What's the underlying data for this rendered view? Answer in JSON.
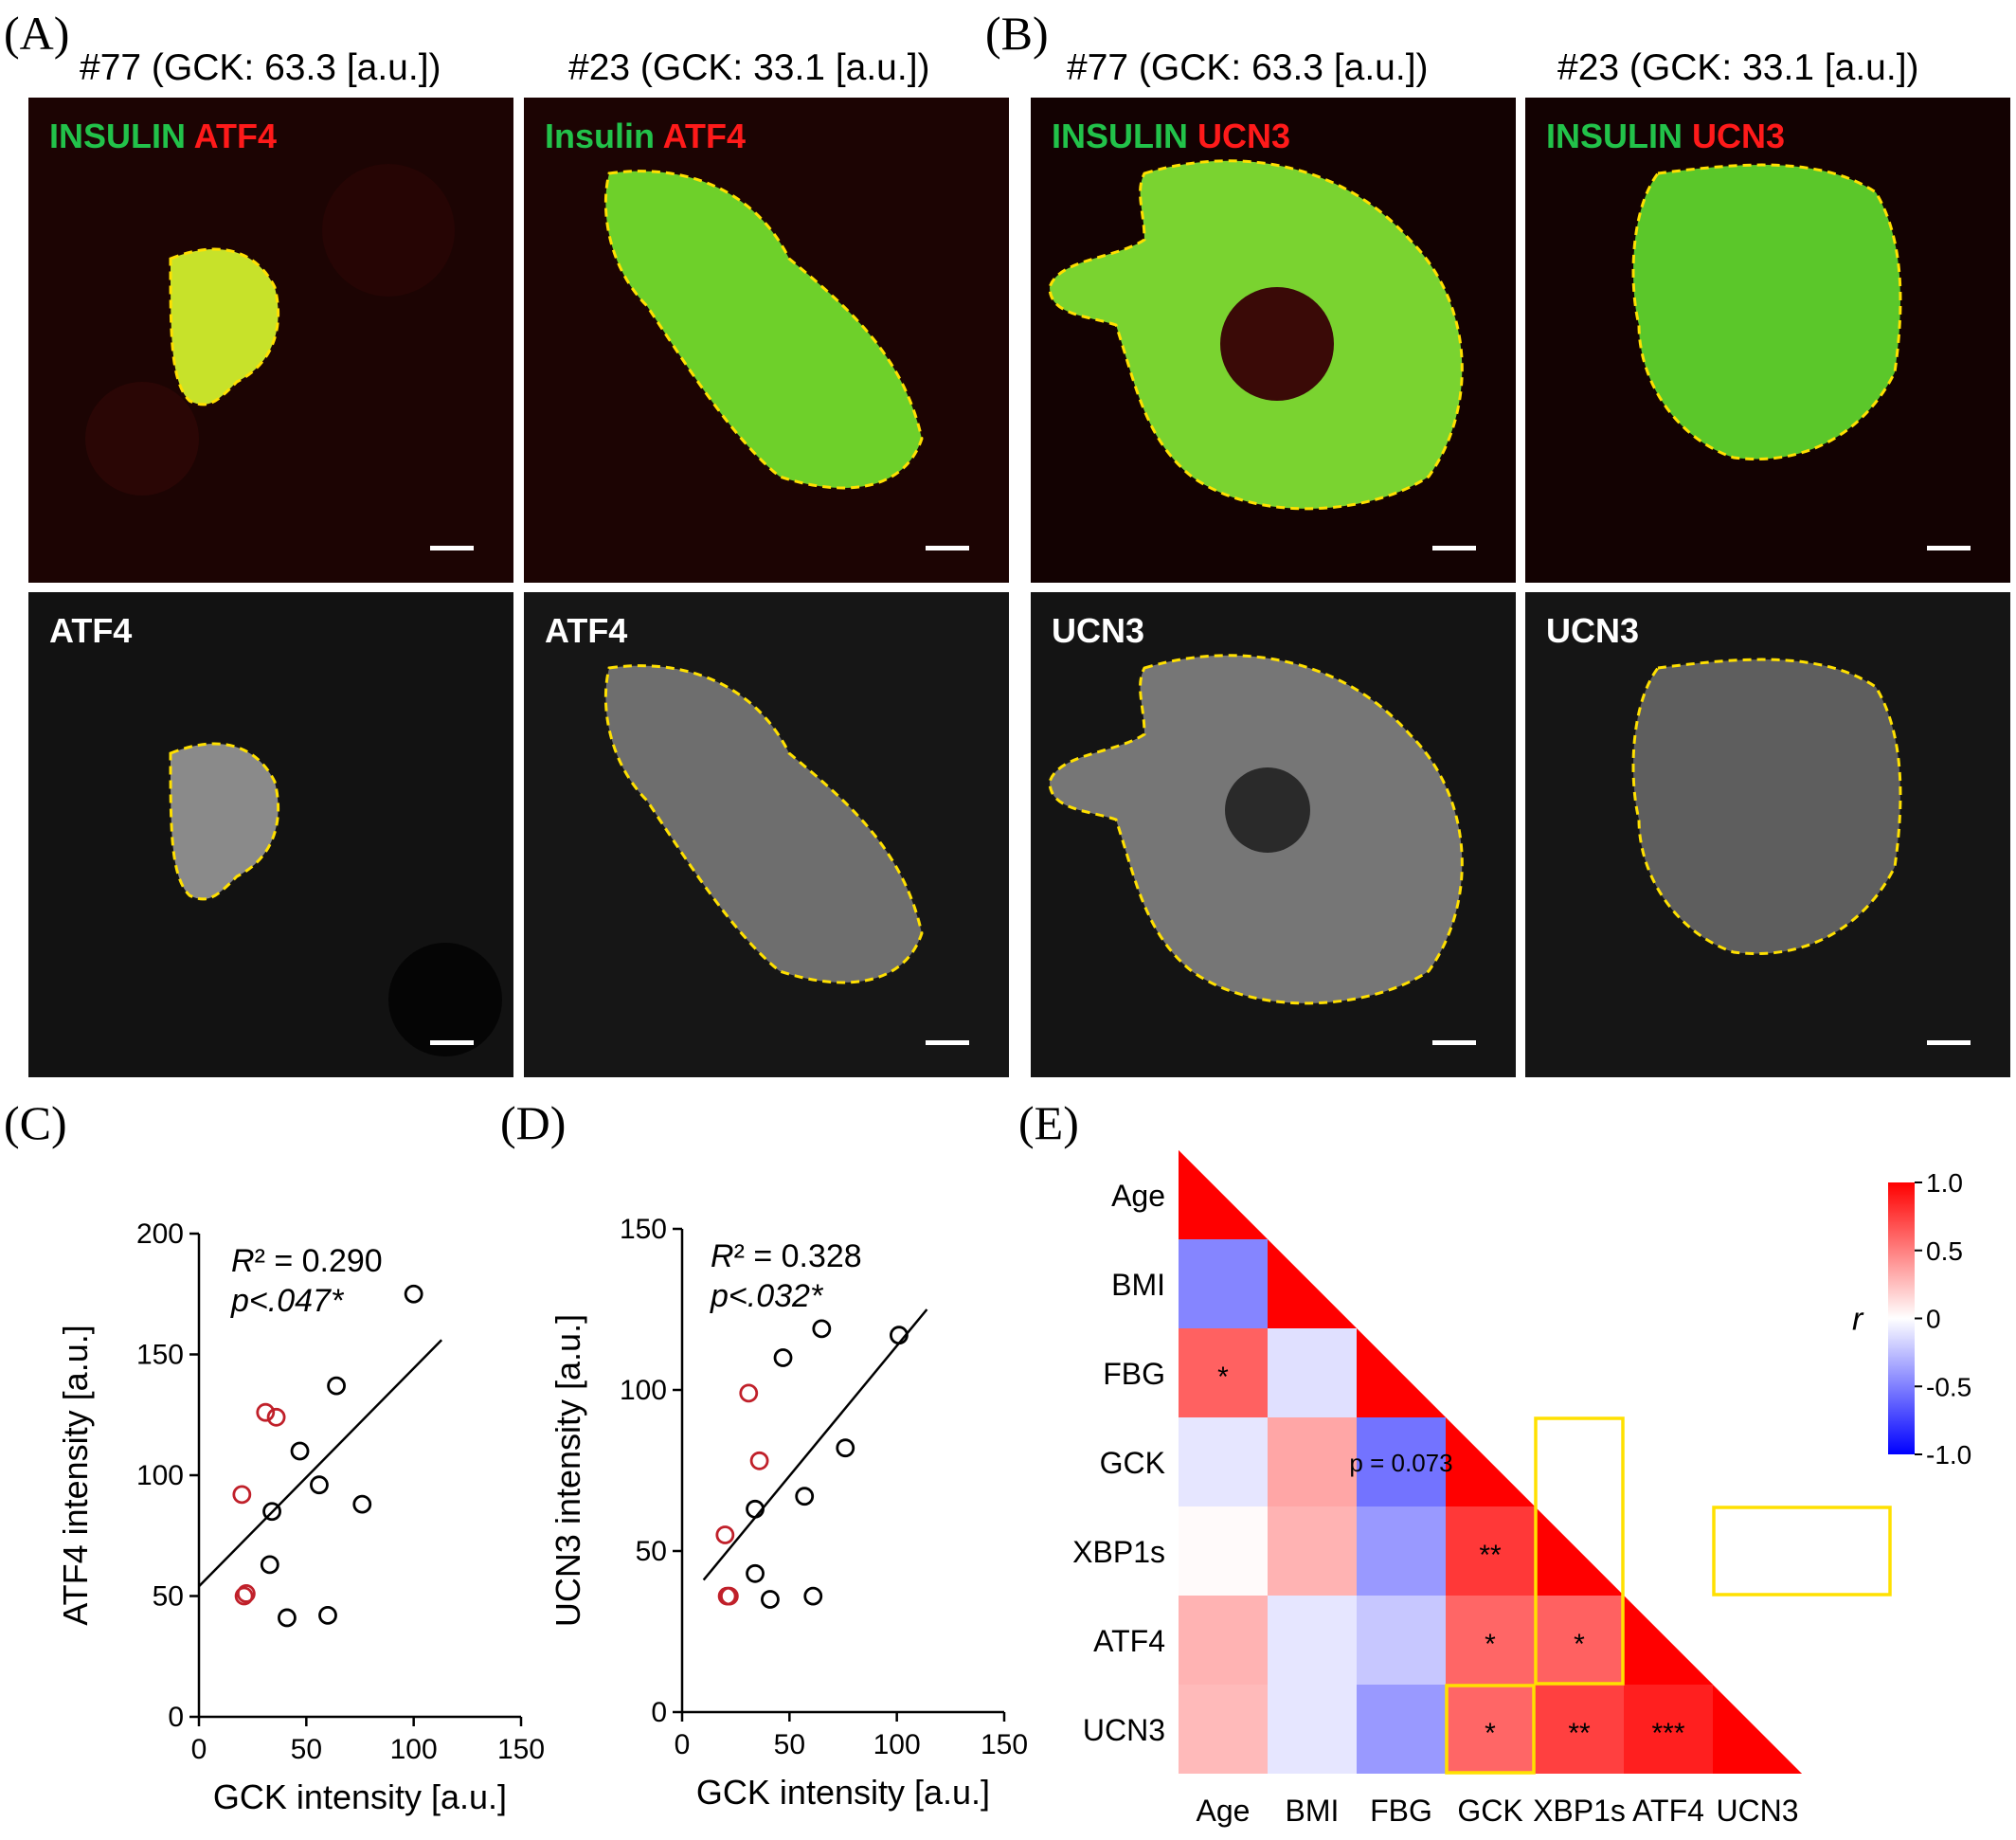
{
  "panel_labels": {
    "a": "(A)",
    "b": "(B)",
    "c": "(C)",
    "d": "(D)",
    "e": "(E)"
  },
  "micrographs": {
    "titles": [
      "#77 (GCK: 63.3 [a.u.])",
      "#23 (GCK: 33.1 [a.u.])",
      "#77 (GCK: 63.3 [a.u.])",
      "#23 (GCK: 33.1 [a.u.])"
    ],
    "top": [
      {
        "green": "INSULIN",
        "red": "ATF4"
      },
      {
        "green": "Insulin",
        "red": "ATF4"
      },
      {
        "green": "INSULIN",
        "red": "UCN3"
      },
      {
        "green": "INSULIN",
        "red": "UCN3"
      }
    ],
    "bottom": [
      "ATF4",
      "ATF4",
      "UCN3",
      "UCN3"
    ]
  },
  "colors": {
    "insulin": "#22c24a",
    "marker": "#ff1a1a",
    "outline": "#ffe000",
    "low": "#ffffff",
    "high_group": "#c0202a"
  },
  "chart_data": [
    {
      "type": "scatter",
      "xlabel": "GCK intensity [a.u.]",
      "ylabel": "ATF4 intensity [a.u.]",
      "xlim": [
        0,
        150
      ],
      "ylim": [
        0,
        200
      ],
      "xticks": [
        "0",
        "50",
        "100",
        "150"
      ],
      "yticks": [
        "0",
        "50",
        "100",
        "150",
        "200"
      ],
      "annotation": {
        "r2_prefix": "R² = ",
        "r2": "0.290",
        "p": "p<.047*"
      },
      "fit": {
        "x": [
          0,
          113
        ],
        "y": [
          54,
          156
        ]
      },
      "series": [
        {
          "color": "#c0202a",
          "points": [
            [
              20,
              92
            ],
            [
              22,
              51
            ],
            [
              21,
              50
            ],
            [
              31,
              126
            ],
            [
              36,
              124
            ]
          ]
        },
        {
          "color": "#000000",
          "points": [
            [
              33,
              63
            ],
            [
              34,
              85
            ],
            [
              41,
              41
            ],
            [
              47,
              110
            ],
            [
              56,
              96
            ],
            [
              60,
              42
            ],
            [
              64,
              137
            ],
            [
              76,
              88
            ],
            [
              100,
              175
            ]
          ]
        }
      ]
    },
    {
      "type": "scatter",
      "xlabel": "GCK intensity [a.u.]",
      "ylabel": "UCN3 intensity [a.u.]",
      "xlim": [
        0,
        150
      ],
      "ylim": [
        0,
        150
      ],
      "xticks": [
        "0",
        "50",
        "100",
        "150"
      ],
      "yticks": [
        "0",
        "50",
        "100",
        "150"
      ],
      "annotation": {
        "r2_prefix": "R² = ",
        "r2": "0.328",
        "p": "p<.032*"
      },
      "fit": {
        "x": [
          10,
          114
        ],
        "y": [
          41,
          125
        ]
      },
      "series": [
        {
          "color": "#c0202a",
          "points": [
            [
              20,
              55
            ],
            [
              21,
              36
            ],
            [
              22,
              36
            ],
            [
              31,
              99
            ],
            [
              36,
              78
            ]
          ]
        },
        {
          "color": "#000000",
          "points": [
            [
              34,
              63
            ],
            [
              34,
              43
            ],
            [
              41,
              35
            ],
            [
              47,
              110
            ],
            [
              57,
              67
            ],
            [
              61,
              36
            ],
            [
              65,
              119
            ],
            [
              76,
              82
            ],
            [
              101,
              117
            ]
          ]
        }
      ]
    },
    {
      "type": "heatmap",
      "labels": [
        "Age",
        "BMI",
        "FBG",
        "GCK",
        "XBP1s",
        "ATF4",
        "UCN3"
      ],
      "colorbar": {
        "title": "r",
        "ticks": [
          "1.0",
          "0.5",
          "0",
          "-0.5",
          "-1.0"
        ],
        "range": [
          -1.0,
          1.0
        ]
      },
      "cells": [
        {
          "row": 1,
          "col": 0,
          "r": -0.48
        },
        {
          "row": 2,
          "col": 0,
          "r": 0.62,
          "sig": "*"
        },
        {
          "row": 2,
          "col": 1,
          "r": -0.12
        },
        {
          "row": 3,
          "col": 0,
          "r": -0.1
        },
        {
          "row": 3,
          "col": 1,
          "r": 0.35
        },
        {
          "row": 3,
          "col": 2,
          "r": -0.55,
          "note": "p = 0.073"
        },
        {
          "row": 4,
          "col": 0,
          "r": 0.02
        },
        {
          "row": 4,
          "col": 1,
          "r": 0.3
        },
        {
          "row": 4,
          "col": 2,
          "r": -0.4
        },
        {
          "row": 4,
          "col": 3,
          "r": 0.78,
          "sig": "**"
        },
        {
          "row": 5,
          "col": 0,
          "r": 0.3
        },
        {
          "row": 5,
          "col": 1,
          "r": -0.1
        },
        {
          "row": 5,
          "col": 2,
          "r": -0.22
        },
        {
          "row": 5,
          "col": 3,
          "r": 0.6,
          "sig": "*"
        },
        {
          "row": 5,
          "col": 4,
          "r": 0.62,
          "sig": "*"
        },
        {
          "row": 6,
          "col": 0,
          "r": 0.27
        },
        {
          "row": 6,
          "col": 1,
          "r": -0.1
        },
        {
          "row": 6,
          "col": 2,
          "r": -0.4
        },
        {
          "row": 6,
          "col": 3,
          "r": 0.6,
          "sig": "*"
        },
        {
          "row": 6,
          "col": 4,
          "r": 0.75,
          "sig": "**"
        },
        {
          "row": 6,
          "col": 5,
          "r": 0.88,
          "sig": "***"
        }
      ]
    }
  ]
}
